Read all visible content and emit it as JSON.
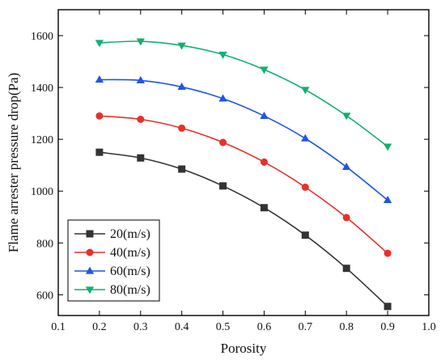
{
  "chart_data": {
    "type": "line",
    "title": "",
    "xlabel": "Porosity",
    "ylabel": "Flame arrester pressure drop(Pa)",
    "xlim": [
      0.1,
      1.0
    ],
    "ylim": [
      520,
      1700
    ],
    "xticks": [
      0.1,
      0.2,
      0.3,
      0.4,
      0.5,
      0.6,
      0.7,
      0.8,
      0.9,
      1.0
    ],
    "yticks": [
      600,
      800,
      1000,
      1200,
      1400,
      1600
    ],
    "xtick_labels": [
      "0.1",
      "0.2",
      "0.3",
      "0.4",
      "0.5",
      "0.6",
      "0.7",
      "0.8",
      "0.9",
      "1.0"
    ],
    "ytick_labels": [
      "600",
      "800",
      "1000",
      "1200",
      "1400",
      "1600"
    ],
    "grid": false,
    "legend_position": "bottom-left",
    "x": [
      0.2,
      0.3,
      0.4,
      0.5,
      0.6,
      0.7,
      0.8,
      0.9
    ],
    "series": [
      {
        "name": "20(m/s)",
        "color": "#333333",
        "marker": "square",
        "values": [
          1150,
          1128,
          1085,
          1020,
          936,
          830,
          702,
          555
        ]
      },
      {
        "name": "40(m/s)",
        "color": "#e8302a",
        "marker": "circle",
        "values": [
          1290,
          1277,
          1243,
          1188,
          1112,
          1015,
          898,
          760
        ]
      },
      {
        "name": "60(m/s)",
        "color": "#1f56e8",
        "marker": "triangle-up",
        "values": [
          1430,
          1427,
          1402,
          1357,
          1290,
          1203,
          1093,
          965
        ]
      },
      {
        "name": "80(m/s)",
        "color": "#12b070",
        "marker": "triangle-down",
        "values": [
          1572,
          1578,
          1562,
          1527,
          1469,
          1391,
          1291,
          1172
        ]
      }
    ]
  }
}
